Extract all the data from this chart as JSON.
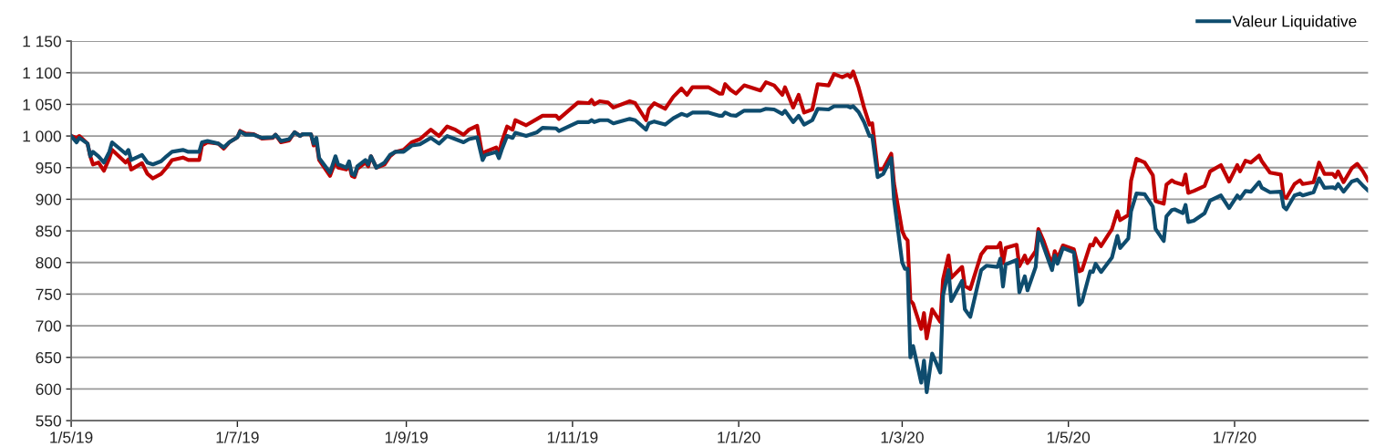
{
  "chart_data": {
    "type": "line",
    "series": [
      {
        "name": "Valeur Liquidative",
        "color": "#0e4c6e",
        "x": [
          "2019-05-01",
          "2019-05-03",
          "2019-05-04",
          "2019-05-07",
          "2019-05-08",
          "2019-05-09",
          "2019-05-11",
          "2019-05-13",
          "2019-05-15",
          "2019-05-16",
          "2019-05-21",
          "2019-05-22",
          "2019-05-23",
          "2019-05-27",
          "2019-05-29",
          "2019-05-31",
          "2019-06-03",
          "2019-06-05",
          "2019-06-07",
          "2019-06-11",
          "2019-06-13",
          "2019-06-17",
          "2019-06-18",
          "2019-06-20",
          "2019-06-24",
          "2019-06-26",
          "2019-06-28",
          "2019-07-01",
          "2019-07-02",
          "2019-07-04",
          "2019-07-07",
          "2019-07-10",
          "2019-07-14",
          "2019-07-15",
          "2019-07-17",
          "2019-07-20",
          "2019-07-22",
          "2019-07-24",
          "2019-07-25",
          "2019-07-28",
          "2019-07-29",
          "2019-07-30",
          "2019-07-31",
          "2019-08-04",
          "2019-08-06",
          "2019-08-07",
          "2019-08-10",
          "2019-08-11",
          "2019-08-12",
          "2019-08-13",
          "2019-08-14",
          "2019-08-17",
          "2019-08-18",
          "2019-08-19",
          "2019-08-21",
          "2019-08-24",
          "2019-08-26",
          "2019-08-28",
          "2019-08-31",
          "2019-09-03",
          "2019-09-06",
          "2019-09-10",
          "2019-09-13",
          "2019-09-16",
          "2019-09-19",
          "2019-09-22",
          "2019-09-24",
          "2019-09-27",
          "2019-09-29",
          "2019-09-30",
          "2019-10-04",
          "2019-10-05",
          "2019-10-06",
          "2019-10-08",
          "2019-10-10",
          "2019-10-11",
          "2019-10-15",
          "2019-10-19",
          "2019-10-21",
          "2019-10-26",
          "2019-10-27",
          "2019-11-03",
          "2019-11-07",
          "2019-11-08",
          "2019-11-09",
          "2019-11-11",
          "2019-11-14",
          "2019-11-16",
          "2019-11-22",
          "2019-11-24",
          "2019-11-28",
          "2019-11-29",
          "2019-12-01",
          "2019-12-05",
          "2019-12-08",
          "2019-12-11",
          "2019-12-13",
          "2019-12-15",
          "2019-12-21",
          "2019-12-25",
          "2019-12-26",
          "2019-12-27",
          "2019-12-29",
          "2019-12-31",
          "2020-01-03",
          "2020-01-09",
          "2020-01-11",
          "2020-01-14",
          "2020-01-17",
          "2020-01-18",
          "2020-01-21",
          "2020-01-23",
          "2020-01-25",
          "2020-01-28",
          "2020-01-30",
          "2020-02-03",
          "2020-02-05",
          "2020-02-08",
          "2020-02-10",
          "2020-02-11",
          "2020-02-12",
          "2020-02-14",
          "2020-02-16",
          "2020-02-18",
          "2020-02-19",
          "2020-02-21",
          "2020-02-23",
          "2020-02-26",
          "2020-02-27",
          "2020-03-01",
          "2020-03-02",
          "2020-03-03",
          "2020-03-04",
          "2020-03-05",
          "2020-03-08",
          "2020-03-09",
          "2020-03-10",
          "2020-03-12",
          "2020-03-15",
          "2020-03-16",
          "2020-03-18",
          "2020-03-19",
          "2020-03-23",
          "2020-03-24",
          "2020-03-26",
          "2020-03-30",
          "2020-04-01",
          "2020-04-05",
          "2020-04-06",
          "2020-04-07",
          "2020-04-08",
          "2020-04-12",
          "2020-04-13",
          "2020-04-15",
          "2020-04-16",
          "2020-04-19",
          "2020-04-20",
          "2020-04-22",
          "2020-04-25",
          "2020-04-26",
          "2020-04-27",
          "2020-04-29",
          "2020-05-03",
          "2020-05-05",
          "2020-05-06",
          "2020-05-09",
          "2020-05-10",
          "2020-05-11",
          "2020-05-13",
          "2020-05-17",
          "2020-05-19",
          "2020-05-20",
          "2020-05-23",
          "2020-05-24",
          "2020-05-26",
          "2020-05-29",
          "2020-06-01",
          "2020-06-02",
          "2020-06-05",
          "2020-06-06",
          "2020-06-08",
          "2020-06-09",
          "2020-06-12",
          "2020-06-13",
          "2020-06-14",
          "2020-06-16",
          "2020-06-20",
          "2020-06-22",
          "2020-06-26",
          "2020-06-29",
          "2020-07-02",
          "2020-07-03",
          "2020-07-05",
          "2020-07-07",
          "2020-07-10",
          "2020-07-11",
          "2020-07-14",
          "2020-07-18",
          "2020-07-19",
          "2020-07-20",
          "2020-07-23",
          "2020-07-25",
          "2020-07-26",
          "2020-07-30",
          "2020-08-01",
          "2020-08-03",
          "2020-08-06",
          "2020-08-07",
          "2020-08-08",
          "2020-08-10",
          "2020-08-13",
          "2020-08-15",
          "2020-08-17",
          "2020-08-19"
        ],
        "values": [
          1000,
          990,
          997,
          988,
          968,
          975,
          968,
          958,
          975,
          990,
          972,
          978,
          962,
          970,
          958,
          955,
          960,
          968,
          975,
          978,
          975,
          975,
          990,
          992,
          988,
          982,
          990,
          998,
          1007,
          1002,
          1002,
          997,
          998,
          1002,
          992,
          995,
          1006,
          1000,
          1003,
          1003,
          988,
          997,
          965,
          942,
          968,
          955,
          950,
          960,
          940,
          938,
          952,
          962,
          955,
          968,
          950,
          958,
          970,
          975,
          975,
          985,
          987,
          997,
          988,
          1000,
          995,
          990,
          995,
          998,
          962,
          970,
          975,
          965,
          978,
          1000,
          997,
          1005,
          1000,
          1006,
          1013,
          1012,
          1008,
          1022,
          1022,
          1025,
          1022,
          1025,
          1025,
          1020,
          1027,
          1025,
          1010,
          1020,
          1023,
          1018,
          1028,
          1035,
          1032,
          1037,
          1037,
          1032,
          1032,
          1037,
          1033,
          1032,
          1040,
          1040,
          1043,
          1042,
          1035,
          1040,
          1022,
          1032,
          1018,
          1025,
          1043,
          1042,
          1047,
          1047,
          1047,
          1045,
          1047,
          1038,
          1022,
          1000,
          1000,
          935,
          940,
          965,
          900,
          800,
          790,
          790,
          650,
          668,
          610,
          645,
          595,
          656,
          626,
          748,
          788,
          739,
          771,
          726,
          714,
          788,
          795,
          793,
          806,
          762,
          797,
          804,
          753,
          778,
          756,
          793,
          848,
          824,
          788,
          811,
          798,
          823,
          816,
          733,
          738,
          786,
          785,
          798,
          785,
          808,
          842,
          823,
          838,
          881,
          909,
          908,
          888,
          853,
          834,
          873,
          883,
          884,
          878,
          891,
          864,
          866,
          878,
          898,
          906,
          886,
          906,
          901,
          913,
          912,
          927,
          918,
          911,
          912,
          888,
          884,
          906,
          909,
          906,
          911,
          933,
          918,
          919,
          917,
          924,
          912,
          928,
          931,
          922,
          914
        ]
      },
      {
        "color": "#c00000",
        "x": [
          "2019-05-01",
          "2019-05-03",
          "2019-05-04",
          "2019-05-07",
          "2019-05-08",
          "2019-05-09",
          "2019-05-11",
          "2019-05-13",
          "2019-05-15",
          "2019-05-16",
          "2019-05-21",
          "2019-05-22",
          "2019-05-23",
          "2019-05-27",
          "2019-05-29",
          "2019-05-31",
          "2019-06-03",
          "2019-06-05",
          "2019-06-07",
          "2019-06-11",
          "2019-06-13",
          "2019-06-17",
          "2019-06-18",
          "2019-06-20",
          "2019-06-24",
          "2019-06-26",
          "2019-06-28",
          "2019-07-01",
          "2019-07-02",
          "2019-07-04",
          "2019-07-07",
          "2019-07-10",
          "2019-07-14",
          "2019-07-15",
          "2019-07-17",
          "2019-07-20",
          "2019-07-22",
          "2019-07-24",
          "2019-07-25",
          "2019-07-28",
          "2019-07-29",
          "2019-07-30",
          "2019-07-31",
          "2019-08-04",
          "2019-08-06",
          "2019-08-07",
          "2019-08-10",
          "2019-08-11",
          "2019-08-12",
          "2019-08-13",
          "2019-08-14",
          "2019-08-17",
          "2019-08-18",
          "2019-08-19",
          "2019-08-21",
          "2019-08-24",
          "2019-08-26",
          "2019-08-28",
          "2019-08-31",
          "2019-09-03",
          "2019-09-06",
          "2019-09-10",
          "2019-09-13",
          "2019-09-16",
          "2019-09-19",
          "2019-09-22",
          "2019-09-24",
          "2019-09-27",
          "2019-09-29",
          "2019-09-30",
          "2019-10-04",
          "2019-10-05",
          "2019-10-06",
          "2019-10-08",
          "2019-10-10",
          "2019-10-11",
          "2019-10-15",
          "2019-10-19",
          "2019-10-21",
          "2019-10-26",
          "2019-10-27",
          "2019-11-03",
          "2019-11-07",
          "2019-11-08",
          "2019-11-09",
          "2019-11-11",
          "2019-11-14",
          "2019-11-16",
          "2019-11-22",
          "2019-11-24",
          "2019-11-28",
          "2019-11-29",
          "2019-12-01",
          "2019-12-05",
          "2019-12-08",
          "2019-12-11",
          "2019-12-13",
          "2019-12-15",
          "2019-12-21",
          "2019-12-25",
          "2019-12-26",
          "2019-12-27",
          "2019-12-29",
          "2019-12-31",
          "2020-01-03",
          "2020-01-09",
          "2020-01-11",
          "2020-01-14",
          "2020-01-17",
          "2020-01-18",
          "2020-01-21",
          "2020-01-23",
          "2020-01-25",
          "2020-01-28",
          "2020-01-30",
          "2020-02-03",
          "2020-02-05",
          "2020-02-08",
          "2020-02-10",
          "2020-02-11",
          "2020-02-12",
          "2020-02-14",
          "2020-02-16",
          "2020-02-18",
          "2020-02-19",
          "2020-02-21",
          "2020-02-23",
          "2020-02-26",
          "2020-02-27",
          "2020-03-01",
          "2020-03-02",
          "2020-03-03",
          "2020-03-04",
          "2020-03-05",
          "2020-03-08",
          "2020-03-09",
          "2020-03-10",
          "2020-03-12",
          "2020-03-15",
          "2020-03-16",
          "2020-03-18",
          "2020-03-19",
          "2020-03-23",
          "2020-03-24",
          "2020-03-26",
          "2020-03-30",
          "2020-04-01",
          "2020-04-05",
          "2020-04-06",
          "2020-04-07",
          "2020-04-08",
          "2020-04-12",
          "2020-04-13",
          "2020-04-15",
          "2020-04-16",
          "2020-04-19",
          "2020-04-20",
          "2020-04-22",
          "2020-04-25",
          "2020-04-26",
          "2020-04-27",
          "2020-04-29",
          "2020-05-03",
          "2020-05-05",
          "2020-05-06",
          "2020-05-09",
          "2020-05-10",
          "2020-05-11",
          "2020-05-13",
          "2020-05-17",
          "2020-05-19",
          "2020-05-20",
          "2020-05-23",
          "2020-05-24",
          "2020-05-26",
          "2020-05-29",
          "2020-06-01",
          "2020-06-02",
          "2020-06-05",
          "2020-06-06",
          "2020-06-08",
          "2020-06-09",
          "2020-06-12",
          "2020-06-13",
          "2020-06-14",
          "2020-06-16",
          "2020-06-20",
          "2020-06-22",
          "2020-06-26",
          "2020-06-29",
          "2020-07-02",
          "2020-07-03",
          "2020-07-05",
          "2020-07-07",
          "2020-07-10",
          "2020-07-11",
          "2020-07-14",
          "2020-07-18",
          "2020-07-19",
          "2020-07-20",
          "2020-07-23",
          "2020-07-25",
          "2020-07-26",
          "2020-07-30",
          "2020-08-01",
          "2020-08-03",
          "2020-08-06",
          "2020-08-07",
          "2020-08-08",
          "2020-08-10",
          "2020-08-13",
          "2020-08-15",
          "2020-08-17",
          "2020-08-19"
        ],
        "values": [
          1000,
          997,
          1000,
          988,
          968,
          955,
          958,
          945,
          965,
          978,
          958,
          963,
          947,
          957,
          940,
          933,
          940,
          950,
          962,
          966,
          962,
          962,
          985,
          990,
          988,
          980,
          990,
          998,
          1008,
          1004,
          1003,
          996,
          997,
          1002,
          990,
          993,
          1006,
          1000,
          1003,
          1003,
          985,
          990,
          962,
          937,
          960,
          950,
          947,
          955,
          937,
          935,
          948,
          958,
          952,
          968,
          950,
          955,
          968,
          975,
          978,
          990,
          995,
          1010,
          1000,
          1015,
          1010,
          1002,
          1010,
          1016,
          968,
          975,
          982,
          972,
          990,
          1015,
          1010,
          1025,
          1017,
          1027,
          1032,
          1032,
          1027,
          1053,
          1052,
          1057,
          1050,
          1055,
          1053,
          1045,
          1055,
          1052,
          1025,
          1042,
          1052,
          1043,
          1062,
          1075,
          1065,
          1077,
          1077,
          1067,
          1067,
          1082,
          1073,
          1067,
          1080,
          1072,
          1085,
          1080,
          1065,
          1077,
          1045,
          1065,
          1037,
          1042,
          1082,
          1080,
          1098,
          1093,
          1097,
          1093,
          1102,
          1077,
          1045,
          1018,
          1020,
          947,
          948,
          972,
          925,
          850,
          840,
          835,
          740,
          735,
          695,
          720,
          680,
          726,
          706,
          773,
          811,
          776,
          793,
          763,
          758,
          813,
          824,
          824,
          831,
          799,
          823,
          828,
          794,
          811,
          799,
          818,
          853,
          833,
          796,
          818,
          806,
          827,
          821,
          786,
          788,
          828,
          827,
          838,
          826,
          853,
          881,
          867,
          875,
          929,
          964,
          958,
          938,
          897,
          893,
          923,
          930,
          927,
          923,
          939,
          910,
          913,
          921,
          944,
          954,
          928,
          954,
          944,
          961,
          958,
          969,
          960,
          942,
          939,
          905,
          902,
          924,
          930,
          924,
          927,
          958,
          940,
          940,
          935,
          944,
          927,
          949,
          956,
          945,
          930
        ]
      }
    ],
    "xlim": [
      "2019-05-01",
      "2020-08-19"
    ],
    "xticks": [
      {
        "value": "2019-05-01",
        "label": "1/5/19"
      },
      {
        "value": "2019-07-01",
        "label": "1/7/19"
      },
      {
        "value": "2019-09-01",
        "label": "1/9/19"
      },
      {
        "value": "2019-11-01",
        "label": "1/11/19"
      },
      {
        "value": "2020-01-01",
        "label": "1/1/20"
      },
      {
        "value": "2020-03-01",
        "label": "1/3/20"
      },
      {
        "value": "2020-05-01",
        "label": "1/5/20"
      },
      {
        "value": "2020-07-01",
        "label": "1/7/20"
      }
    ],
    "ylim": [
      550,
      1150
    ],
    "yticks": [
      550,
      600,
      650,
      700,
      750,
      800,
      850,
      900,
      950,
      {
        "value": 1000,
        "label": "1 000"
      },
      {
        "value": 1050,
        "label": "1 050"
      },
      {
        "value": 1100,
        "label": "1 100"
      },
      {
        "value": 1150,
        "label": "1 150"
      }
    ],
    "grid": "y",
    "legend": "top right",
    "marker": "none",
    "line_style": "solid"
  }
}
